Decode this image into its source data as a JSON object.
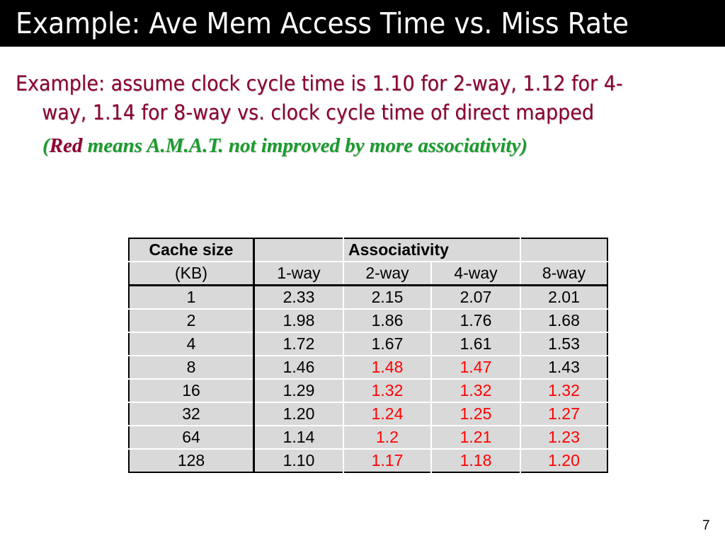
{
  "title": "Example:  Ave Mem Access Time vs. Miss Rate",
  "example": {
    "line1": "Example:  assume clock cycle time is 1.10 for 2-way, 1.12 for 4-",
    "line2": "way, 1.14 for 8-way vs. clock cycle time of direct mapped",
    "note_open": "(",
    "note_red": "Red",
    "note_rest": " means A.M.A.T. not improved by more associativity)"
  },
  "table": {
    "header1": [
      "Cache size",
      "",
      "Associativity",
      "",
      ""
    ],
    "header2": [
      "(KB)",
      "1-way",
      "2-way",
      "4-way",
      "8-way"
    ],
    "rows": [
      {
        "size": "1",
        "v": [
          "2.33",
          "2.15",
          "2.07",
          "2.01"
        ],
        "red": [
          false,
          false,
          false,
          false
        ]
      },
      {
        "size": "2",
        "v": [
          "1.98",
          "1.86",
          "1.76",
          "1.68"
        ],
        "red": [
          false,
          false,
          false,
          false
        ]
      },
      {
        "size": "4",
        "v": [
          "1.72",
          "1.67",
          "1.61",
          "1.53"
        ],
        "red": [
          false,
          false,
          false,
          false
        ]
      },
      {
        "size": "8",
        "v": [
          "1.46",
          "1.48",
          "1.47",
          "1.43"
        ],
        "red": [
          false,
          true,
          true,
          false
        ]
      },
      {
        "size": "16",
        "v": [
          "1.29",
          "1.32",
          "1.32",
          "1.32"
        ],
        "red": [
          false,
          true,
          true,
          true
        ]
      },
      {
        "size": "32",
        "v": [
          "1.20",
          "1.24",
          "1.25",
          "1.27"
        ],
        "red": [
          false,
          true,
          true,
          true
        ]
      },
      {
        "size": "64",
        "v": [
          "1.14",
          "1.2",
          "1.21",
          "1.23"
        ],
        "red": [
          false,
          true,
          true,
          true
        ]
      },
      {
        "size": "128",
        "v": [
          "1.10",
          "1.17",
          "1.18",
          "1.20"
        ],
        "red": [
          false,
          true,
          true,
          true
        ]
      }
    ]
  },
  "colors": {
    "highlight_red": "#ff0000",
    "heading_maroon": "#8b0030",
    "note_green": "#1a9b2e"
  },
  "page_number": "7"
}
